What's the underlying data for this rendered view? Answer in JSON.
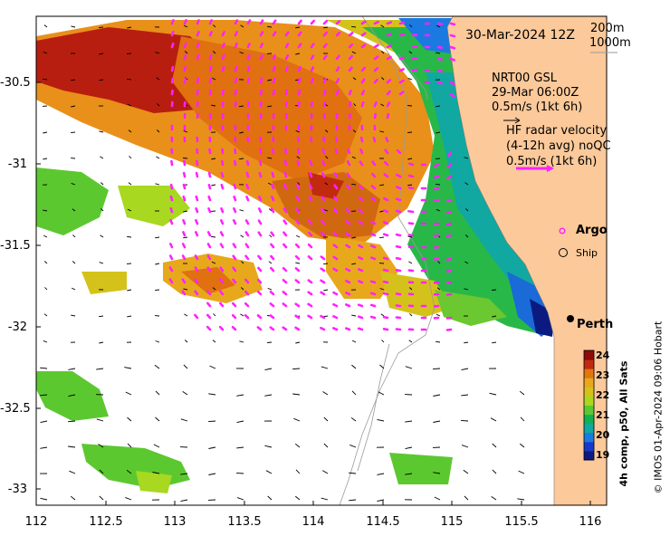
{
  "header": {
    "date": "30-Mar-2024 12Z",
    "depth_200": "200m",
    "depth_1000": "1000m"
  },
  "model_legend": {
    "line1": "NRT00 GSL",
    "line2": "29-Mar 06:00Z",
    "line3": "0.5m/s (1kt 6h)"
  },
  "radar_legend": {
    "line1": "HF radar velocity",
    "line2": "(4-12h avg) noQC",
    "line3": "0.5m/s (1kt 6h)"
  },
  "markers": {
    "argo_label": "Argo",
    "ship_label": "Ship",
    "city_label": "Perth"
  },
  "axes": {
    "y_ticks": [
      "-30.5",
      "-31",
      "-31.5",
      "-32",
      "-32.5",
      "-33"
    ],
    "x_ticks": [
      "112",
      "112.5",
      "113",
      "113.5",
      "114",
      "114.5",
      "115",
      "115.5",
      "116"
    ]
  },
  "colorbar": {
    "title": "4h comp, p50, All Sats",
    "labels": [
      "24",
      "23",
      "22",
      "21",
      "20",
      "19"
    ],
    "colors": [
      "#8b0a0a",
      "#c22a10",
      "#e0760e",
      "#e8a81c",
      "#d4c21a",
      "#a8d820",
      "#5cc830",
      "#12b050",
      "#10a8a0",
      "#1a7ae0",
      "#1838c8",
      "#0a1a80"
    ]
  },
  "credit": "© IMOS 01-Apr-2024 09:06 Hobart",
  "colors": {
    "land": "#fbc99a",
    "radar_arrows": "#ff22ff",
    "model_arrows": "#000000",
    "contour": "#9a9a9a"
  }
}
